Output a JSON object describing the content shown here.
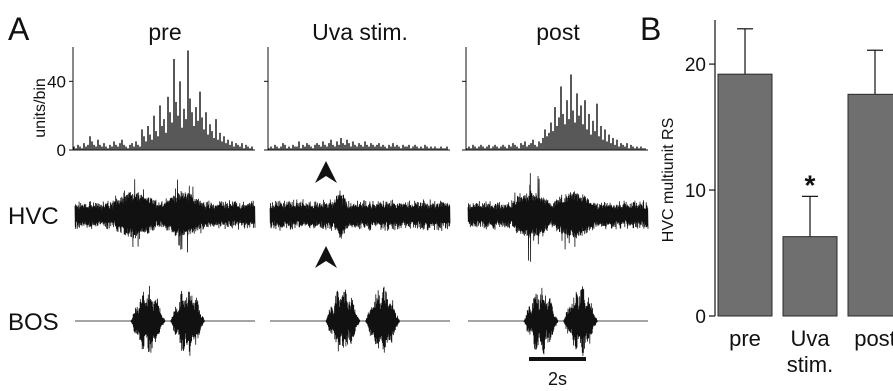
{
  "panels": {
    "a_letter": "A",
    "b_letter": "B"
  },
  "colors": {
    "trace": "#111111",
    "bar_fill": "#6f6f6f",
    "bar_stroke": "#2a2a2a"
  },
  "chart_data": [
    {
      "type": "bar",
      "panel": "A",
      "kind": "peri-stimulus histograms, three conditions",
      "conditions": [
        "pre",
        "Uva stim.",
        "post"
      ],
      "ylabel": "units/bin",
      "yticks": [
        0,
        40
      ],
      "ylim": [
        0,
        60
      ],
      "series": [
        {
          "name": "pre",
          "values": [
            2,
            1,
            3,
            2,
            1,
            4,
            2,
            3,
            8,
            5,
            3,
            2,
            6,
            3,
            2,
            4,
            2,
            1,
            3,
            2,
            5,
            3,
            2,
            4,
            6,
            3,
            2,
            1,
            3,
            4,
            2,
            5,
            3,
            2,
            12,
            8,
            5,
            14,
            9,
            6,
            20,
            11,
            8,
            26,
            14,
            18,
            10,
            31,
            22,
            16,
            53,
            28,
            20,
            40,
            13,
            24,
            18,
            58,
            30,
            22,
            14,
            25,
            17,
            34,
            19,
            12,
            22,
            9,
            15,
            11,
            7,
            18,
            6,
            10,
            5,
            8,
            4,
            6,
            3,
            5,
            2,
            4,
            3,
            2,
            4,
            1,
            3,
            2,
            1,
            2
          ]
        },
        {
          "name": "Uva stim.",
          "values": [
            1,
            2,
            1,
            3,
            2,
            1,
            2,
            4,
            3,
            1,
            2,
            1,
            3,
            2,
            2,
            5,
            1,
            3,
            2,
            4,
            3,
            2,
            1,
            3,
            4,
            3,
            2,
            5,
            3,
            2,
            4,
            6,
            3,
            2,
            5,
            3,
            7,
            4,
            3,
            6,
            4,
            2,
            5,
            3,
            2,
            4,
            3,
            2,
            5,
            3,
            2,
            4,
            3,
            2,
            3,
            4,
            2,
            3,
            2,
            1,
            3,
            2,
            4,
            2,
            3,
            2,
            1,
            3,
            2,
            2,
            3,
            1,
            2,
            3,
            2,
            1,
            2,
            1,
            3,
            2,
            1,
            2,
            1,
            2,
            1,
            1,
            2,
            1,
            1,
            2
          ]
        },
        {
          "name": "post",
          "values": [
            1,
            2,
            1,
            3,
            2,
            1,
            2,
            3,
            2,
            1,
            2,
            3,
            1,
            2,
            3,
            2,
            1,
            2,
            3,
            2,
            1,
            3,
            2,
            4,
            3,
            2,
            1,
            4,
            3,
            5,
            2,
            3,
            4,
            6,
            3,
            2,
            5,
            4,
            7,
            12,
            8,
            10,
            16,
            11,
            25,
            14,
            19,
            37,
            21,
            15,
            29,
            18,
            44,
            23,
            16,
            33,
            20,
            26,
            15,
            29,
            12,
            21,
            9,
            17,
            11,
            27,
            8,
            14,
            6,
            12,
            5,
            9,
            4,
            7,
            3,
            6,
            2,
            4,
            3,
            2,
            4,
            1,
            3,
            2,
            1,
            2,
            1,
            2,
            1,
            1
          ]
        }
      ]
    },
    {
      "type": "line",
      "panel": "A",
      "kind": "HVC multiunit voltage traces",
      "row_label": "HVC",
      "arrowheads_on": "Uva stim.",
      "series": [
        {
          "name": "pre",
          "baseline_noise": 0.28,
          "burst_regions": [
            [
              0.22,
              0.45
            ],
            [
              0.5,
              0.7
            ]
          ],
          "peak_amplitude": 1.0
        },
        {
          "name": "Uva stim.",
          "baseline_noise": 0.3,
          "burst_regions": [
            [
              0.36,
              0.42
            ]
          ],
          "peak_amplitude": 0.5
        },
        {
          "name": "post",
          "baseline_noise": 0.28,
          "burst_regions": [
            [
              0.25,
              0.45
            ],
            [
              0.48,
              0.7
            ]
          ],
          "peak_amplitude": 1.05
        }
      ]
    },
    {
      "type": "line",
      "panel": "A",
      "kind": "bird's own song (BOS) stimulus waveform",
      "row_label": "BOS",
      "series": [
        {
          "name": "pre",
          "motifs": [
            [
              0.31,
              0.5
            ],
            [
              0.53,
              0.72
            ]
          ]
        },
        {
          "name": "Uva stim.",
          "motifs": [
            [
              0.31,
              0.5
            ],
            [
              0.53,
              0.72
            ]
          ]
        },
        {
          "name": "post",
          "motifs": [
            [
              0.31,
              0.5
            ],
            [
              0.53,
              0.72
            ]
          ]
        }
      ],
      "scale_bar_label": "2s",
      "scale_bar_seconds": 2
    },
    {
      "type": "bar",
      "panel": "B",
      "categories": [
        "pre",
        "Uva stim.",
        "post"
      ],
      "category_lines": [
        [
          "pre"
        ],
        [
          "Uva",
          "stim."
        ],
        [
          "post"
        ]
      ],
      "values": [
        19.2,
        6.3,
        17.6
      ],
      "error_upper": [
        22.8,
        9.5,
        21.1
      ],
      "significance_marker": [
        "",
        "*",
        ""
      ],
      "ylabel": "HVC multiunit RS",
      "yticks": [
        0,
        10,
        20
      ],
      "ylim": [
        0,
        23.5
      ],
      "grid": false
    }
  ]
}
